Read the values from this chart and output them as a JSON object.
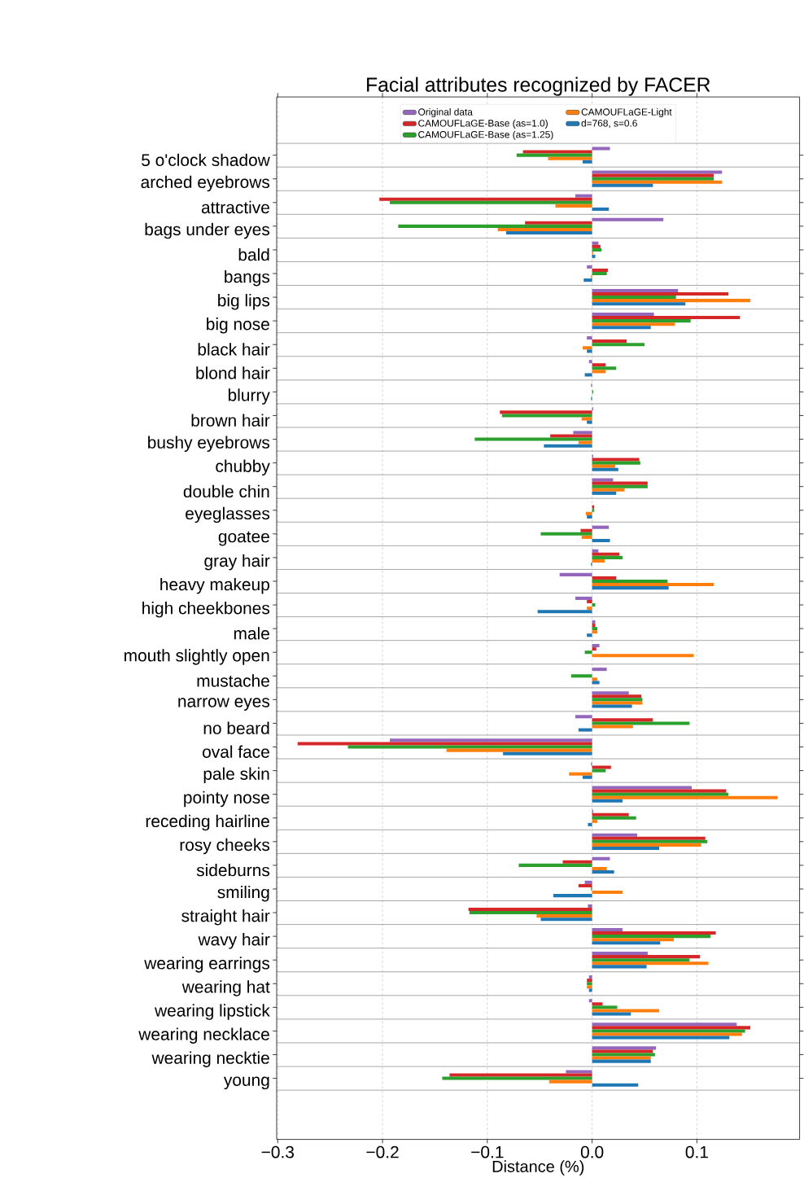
{
  "chart_data": {
    "type": "bar",
    "orientation": "horizontal",
    "title": "Facial attributes recognized by FACER",
    "xlabel": "Distance (%)",
    "categories": [
      "5 o'clock shadow",
      "arched eyebrows",
      "attractive",
      "bags under eyes",
      "bald",
      "bangs",
      "big lips",
      "big nose",
      "black hair",
      "blond hair",
      "blurry",
      "brown hair",
      "bushy eyebrows",
      "chubby",
      "double chin",
      "eyeglasses",
      "goatee",
      "gray hair",
      "heavy makeup",
      "high cheekbones",
      "male",
      "mouth slightly open",
      "mustache",
      "narrow eyes",
      "no beard",
      "oval face",
      "pale skin",
      "pointy nose",
      "receding hairline",
      "rosy cheeks",
      "sideburns",
      "smiling",
      "straight hair",
      "wavy hair",
      "wearing earrings",
      "wearing hat",
      "wearing lipstick",
      "wearing necklace",
      "wearing necktie",
      "young"
    ],
    "series": [
      {
        "name": "Original data",
        "color": "#9467bd",
        "values": [
          0.017,
          0.124,
          -0.016,
          0.068,
          0.006,
          -0.005,
          0.082,
          0.059,
          -0.005,
          -0.003,
          -0.001,
          0.001,
          -0.018,
          0.001,
          0.02,
          0.0,
          0.016,
          0.006,
          -0.031,
          -0.016,
          0.003,
          0.007,
          0.014,
          0.035,
          -0.016,
          -0.193,
          -0.001,
          0.095,
          0.001,
          0.043,
          0.017,
          -0.007,
          -0.004,
          0.029,
          0.053,
          -0.003,
          -0.003,
          0.138,
          0.061,
          -0.025
        ]
      },
      {
        "name": "CAMOUFLaGE-Base (as=1.0)",
        "color": "#d62728",
        "values": [
          -0.066,
          0.116,
          -0.203,
          -0.064,
          0.008,
          0.015,
          0.13,
          0.141,
          0.033,
          0.013,
          0.0,
          -0.088,
          -0.04,
          0.045,
          0.053,
          0.002,
          -0.011,
          0.026,
          0.023,
          -0.005,
          0.003,
          0.004,
          0.0,
          0.047,
          0.058,
          -0.281,
          0.018,
          0.128,
          0.035,
          0.108,
          -0.028,
          -0.013,
          -0.118,
          0.118,
          0.103,
          -0.005,
          0.01,
          0.151,
          0.058,
          -0.136
        ]
      },
      {
        "name": "CAMOUFLaGE-Base (as=1.25)",
        "color": "#2ca02c",
        "values": [
          -0.072,
          0.116,
          -0.193,
          -0.185,
          0.009,
          0.014,
          0.08,
          0.094,
          0.05,
          0.023,
          0.001,
          -0.086,
          -0.112,
          0.046,
          0.053,
          0.002,
          -0.049,
          0.029,
          0.072,
          0.003,
          0.005,
          -0.007,
          -0.02,
          0.048,
          0.093,
          -0.233,
          0.013,
          0.13,
          0.042,
          0.11,
          -0.07,
          -0.001,
          -0.117,
          0.113,
          0.093,
          -0.005,
          0.024,
          0.146,
          0.06,
          -0.143
        ]
      },
      {
        "name": "CAMOUFLaGE-Light",
        "color": "#ff7f0e",
        "values": [
          -0.042,
          0.124,
          -0.035,
          -0.09,
          0.001,
          -0.001,
          0.151,
          0.079,
          -0.009,
          0.013,
          0.0,
          -0.01,
          -0.013,
          0.022,
          0.031,
          -0.006,
          -0.01,
          0.012,
          0.116,
          -0.005,
          0.005,
          0.097,
          0.005,
          0.048,
          0.039,
          -0.139,
          -0.022,
          0.177,
          0.005,
          0.104,
          0.014,
          0.029,
          -0.053,
          0.078,
          0.111,
          -0.005,
          0.064,
          0.143,
          0.056,
          -0.041
        ]
      },
      {
        "name": "d=768, s=0.6",
        "color": "#1f77b4",
        "values": [
          -0.009,
          0.058,
          0.016,
          -0.082,
          0.003,
          -0.008,
          0.089,
          0.056,
          -0.005,
          -0.007,
          -0.001,
          -0.005,
          -0.046,
          0.025,
          0.023,
          -0.005,
          0.017,
          -0.001,
          0.073,
          -0.052,
          -0.005,
          0.0,
          0.007,
          0.038,
          -0.013,
          -0.085,
          -0.009,
          0.029,
          -0.004,
          0.064,
          0.021,
          -0.037,
          -0.049,
          0.065,
          0.052,
          -0.003,
          0.037,
          0.131,
          0.056,
          0.044
        ]
      }
    ],
    "xlim": [
      -0.301,
      0.198
    ],
    "xticks": [
      {
        "value": -0.3,
        "label": "−0.3"
      },
      {
        "value": -0.2,
        "label": "−0.2"
      },
      {
        "value": -0.1,
        "label": "−0.1"
      },
      {
        "value": 0.0,
        "label": "0.0"
      },
      {
        "value": 0.1,
        "label": "0.1"
      }
    ],
    "grid": true,
    "legend": "top"
  }
}
